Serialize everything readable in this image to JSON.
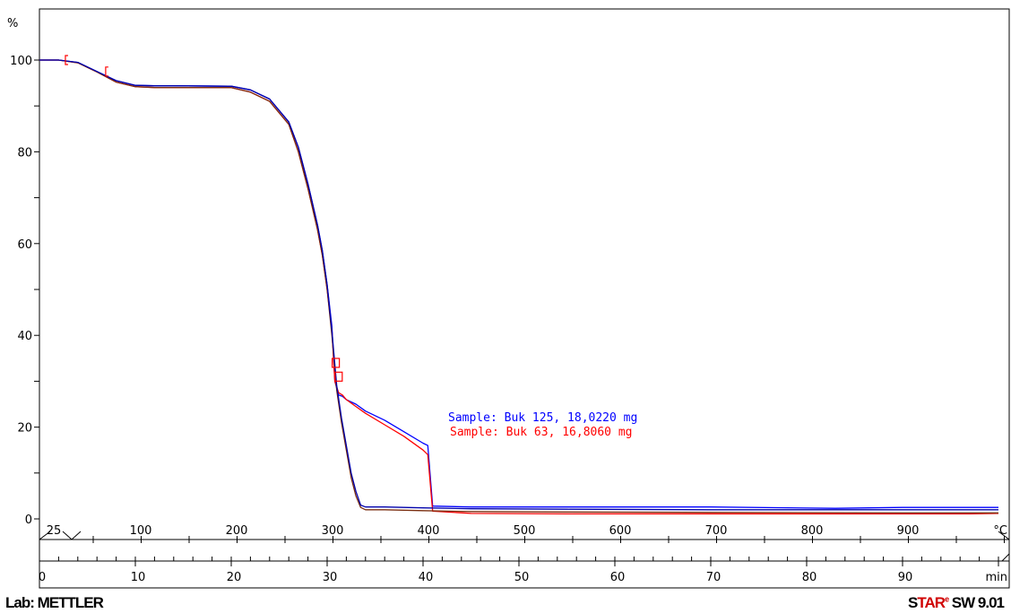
{
  "chart_data": {
    "type": "line",
    "ylabel": "%",
    "ylim": [
      -8,
      110
    ],
    "y_ticks": [
      0,
      20,
      40,
      60,
      80,
      100
    ],
    "temperature_axis": {
      "unit": "°C",
      "ticks": [
        "25",
        "100",
        "200",
        "300",
        "400",
        "500",
        "600",
        "700",
        "800",
        "900"
      ]
    },
    "time_axis": {
      "unit": "min",
      "ticks": [
        "0",
        "10",
        "20",
        "30",
        "40",
        "50",
        "60",
        "70",
        "80",
        "90"
      ]
    },
    "xlim_min": [
      0,
      100
    ],
    "series": [
      {
        "name": "Sample: Buk 125, 18,0220 mg",
        "color": "#0000ff",
        "x": [
          0,
          2,
          4,
          6,
          8,
          10,
          12,
          14,
          20,
          22,
          24,
          26,
          27,
          28,
          29,
          29.5,
          30,
          30.5,
          30.8,
          31.2,
          31.6,
          32,
          33,
          34,
          36,
          38,
          40,
          40.5,
          41,
          45,
          55,
          70,
          83,
          90,
          100
        ],
        "y": [
          100,
          100,
          99.5,
          97.5,
          95.5,
          94.5,
          94.4,
          94.4,
          94.3,
          93.5,
          91.5,
          86.5,
          81,
          73,
          64,
          58.5,
          51,
          42,
          30,
          27,
          26.7,
          26,
          25,
          23.5,
          21.5,
          19,
          16.5,
          16,
          2.8,
          2.6,
          2.6,
          2.6,
          2.3,
          2.5,
          2.5
        ]
      },
      {
        "name": "Sample: Buk 63, 16,8060 mg",
        "color": "#ff0000",
        "x": [
          0,
          2,
          4,
          6,
          8,
          10,
          12,
          14,
          20,
          22,
          24,
          26,
          27,
          28,
          29,
          29.5,
          30,
          30.5,
          30.8,
          31.2,
          31.6,
          32,
          33,
          34,
          36,
          38,
          40,
          40.5,
          41,
          45,
          55,
          67,
          75,
          90,
          97,
          100
        ],
        "y": [
          100,
          100,
          99.4,
          97.4,
          95.2,
          94.2,
          94,
          94,
          94,
          93,
          91,
          86,
          80,
          72,
          63,
          57.5,
          50,
          41,
          30,
          27.5,
          27,
          26,
          24.5,
          23,
          20.5,
          18,
          15,
          14,
          1.7,
          1.2,
          1.1,
          1.1,
          1.1,
          1.1,
          1.1,
          1.2
        ]
      },
      {
        "name": "",
        "color": "#7a2e10",
        "x": [
          0,
          2,
          4,
          6,
          8,
          10,
          12,
          14,
          20,
          22,
          24,
          26,
          27,
          28,
          29,
          29.5,
          30,
          30.5,
          31,
          31.5,
          32,
          32.5,
          33,
          33.5,
          34,
          36,
          40,
          45,
          55,
          70,
          90,
          100
        ],
        "y": [
          100,
          100,
          99.4,
          97.4,
          95.2,
          94.2,
          94,
          94,
          94,
          93,
          91,
          86,
          80,
          72,
          63,
          57.5,
          50,
          40,
          28,
          21,
          15,
          9,
          5,
          2.5,
          2,
          2,
          1.8,
          1.6,
          1.5,
          1.4,
          1.3,
          1.3
        ]
      },
      {
        "name": "",
        "color": "#0000aa",
        "x": [
          0,
          2,
          4,
          6,
          8,
          10,
          12,
          14,
          20,
          22,
          24,
          26,
          27,
          28,
          29,
          29.5,
          30,
          30.5,
          31,
          31.5,
          32,
          32.5,
          33,
          33.5,
          34,
          36,
          40,
          45,
          55,
          70,
          90,
          100
        ],
        "y": [
          100,
          100,
          99.5,
          97.5,
          95.5,
          94.5,
          94.4,
          94.4,
          94.3,
          93.5,
          91.5,
          86.5,
          81,
          73,
          64,
          58.5,
          51,
          41,
          29,
          22,
          16,
          10,
          6,
          3,
          2.6,
          2.6,
          2.4,
          2.2,
          2.1,
          2,
          2,
          2
        ]
      }
    ],
    "annotations": [
      {
        "text": "Sample: Buk 125, 18,0220 mg",
        "color": "#0000ff"
      },
      {
        "text": "Sample: Buk 63, 16,8060 mg",
        "color": "#ff0000"
      }
    ],
    "markers": [
      {
        "x": 2.8,
        "y": 100,
        "shape": "bracket"
      },
      {
        "x": 7,
        "y": 97.5,
        "shape": "bracket"
      },
      {
        "x": 30.9,
        "y": 34,
        "shape": "box"
      },
      {
        "x": 31.2,
        "y": 31,
        "shape": "box"
      }
    ]
  },
  "footer": {
    "lab": "Lab: METTLER",
    "brand_s": "S",
    "brand_tar": "TAR",
    "brand_sup": "e",
    "brand_version": " SW 9.01"
  }
}
